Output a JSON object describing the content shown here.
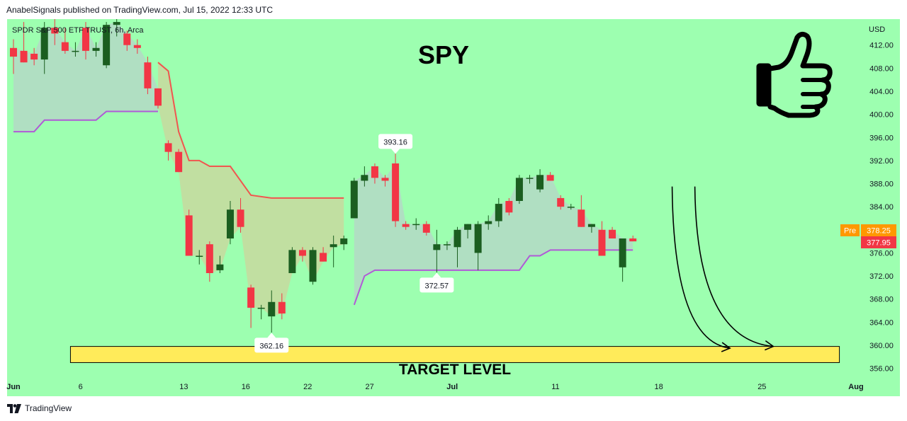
{
  "header": {
    "publisher_text": "AnabelSignals published on TradingView.com, Jul 15, 2022 12:33 UTC"
  },
  "footer": {
    "brand": "TradingView"
  },
  "colors": {
    "background": "#9dffb0",
    "bull": "#1b5e20",
    "bear": "#f23645",
    "upper_band": "#f0564f",
    "lower_band": "#b05bd6",
    "target_fill": "#ffeb5a",
    "pre_badge": "#ff9800",
    "price_badge": "#f23645"
  },
  "chart_data": {
    "type": "candlestick",
    "symbol_label": "SPDR S&P 500 ETF TRUST, 6h, Arca",
    "title": "SPY",
    "currency": "USD",
    "ylim": [
      353.5,
      416.5
    ],
    "y_ticks": [
      "412.00",
      "408.00",
      "404.00",
      "400.00",
      "396.00",
      "392.00",
      "388.00",
      "384.00",
      "380.00",
      "376.00",
      "372.00",
      "368.00",
      "364.00",
      "360.00",
      "356.00"
    ],
    "x_ticks": [
      {
        "label": "Jun",
        "i": 0
      },
      {
        "label": "6",
        "i": 6.5
      },
      {
        "label": "13",
        "i": 16.5
      },
      {
        "label": "16",
        "i": 22.5
      },
      {
        "label": "22",
        "i": 28.5
      },
      {
        "label": "27",
        "i": 34.5
      },
      {
        "label": "Jul",
        "i": 42.5
      },
      {
        "label": "11",
        "i": 52.5
      },
      {
        "label": "18",
        "i": 62.5
      },
      {
        "label": "25",
        "i": 72.5
      },
      {
        "label": "Aug",
        "i": 82.5
      }
    ],
    "candles": [
      {
        "i": 0,
        "o": 411.5,
        "h": 413.0,
        "l": 407.0,
        "c": 410.0
      },
      {
        "i": 1,
        "o": 411.0,
        "h": 416.0,
        "l": 409.0,
        "c": 409.0
      },
      {
        "i": 2,
        "o": 410.5,
        "h": 411.5,
        "l": 408.5,
        "c": 409.5
      },
      {
        "i": 3,
        "o": 409.5,
        "h": 416.0,
        "l": 407.0,
        "c": 415.0
      },
      {
        "i": 4,
        "o": 415.0,
        "h": 416.5,
        "l": 412.0,
        "c": 414.0
      },
      {
        "i": 5,
        "o": 412.5,
        "h": 415.0,
        "l": 410.5,
        "c": 411.0
      },
      {
        "i": 6,
        "o": 411.0,
        "h": 412.5,
        "l": 410.0,
        "c": 411.0
      },
      {
        "i": 7,
        "o": 415.0,
        "h": 416.0,
        "l": 409.5,
        "c": 411.0
      },
      {
        "i": 8,
        "o": 411.0,
        "h": 412.5,
        "l": 410.0,
        "c": 411.5
      },
      {
        "i": 9,
        "o": 408.5,
        "h": 416.0,
        "l": 408.0,
        "c": 415.5
      },
      {
        "i": 10,
        "o": 415.5,
        "h": 416.5,
        "l": 413.5,
        "c": 416.0
      },
      {
        "i": 11,
        "o": 414.0,
        "h": 414.5,
        "l": 411.0,
        "c": 412.0
      },
      {
        "i": 12,
        "o": 412.0,
        "h": 413.0,
        "l": 410.5,
        "c": 411.5
      },
      {
        "i": 13,
        "o": 409.0,
        "h": 410.0,
        "l": 403.5,
        "c": 404.5
      },
      {
        "i": 14,
        "o": 404.5,
        "h": 404.5,
        "l": 401.0,
        "c": 401.5
      },
      {
        "i": 15,
        "o": 395.0,
        "h": 395.5,
        "l": 392.0,
        "c": 393.5
      },
      {
        "i": 16,
        "o": 393.5,
        "h": 394.0,
        "l": 390.0,
        "c": 390.0
      },
      {
        "i": 17,
        "o": 382.5,
        "h": 383.5,
        "l": 375.5,
        "c": 375.5
      },
      {
        "i": 18,
        "o": 375.5,
        "h": 376.5,
        "l": 374.0,
        "c": 375.5
      },
      {
        "i": 19,
        "o": 377.5,
        "h": 378.0,
        "l": 371.0,
        "c": 372.5
      },
      {
        "i": 20,
        "o": 373.0,
        "h": 375.5,
        "l": 372.5,
        "c": 374.0
      },
      {
        "i": 21,
        "o": 378.5,
        "h": 385.0,
        "l": 377.5,
        "c": 383.5
      },
      {
        "i": 22,
        "o": 383.5,
        "h": 385.5,
        "l": 379.5,
        "c": 380.5
      },
      {
        "i": 23,
        "o": 370.0,
        "h": 370.5,
        "l": 363.0,
        "c": 366.5
      },
      {
        "i": 24,
        "o": 366.5,
        "h": 367.0,
        "l": 364.5,
        "c": 366.5
      },
      {
        "i": 25,
        "o": 365.0,
        "h": 369.5,
        "l": 362.2,
        "c": 367.5
      },
      {
        "i": 26,
        "o": 367.5,
        "h": 369.0,
        "l": 364.5,
        "c": 365.5
      },
      {
        "i": 27,
        "o": 372.5,
        "h": 377.0,
        "l": 372.5,
        "c": 376.5
      },
      {
        "i": 28,
        "o": 376.5,
        "h": 377.0,
        "l": 374.5,
        "c": 375.5
      },
      {
        "i": 29,
        "o": 371.0,
        "h": 377.0,
        "l": 370.5,
        "c": 376.5
      },
      {
        "i": 30,
        "o": 376.0,
        "h": 377.0,
        "l": 374.5,
        "c": 374.5
      },
      {
        "i": 31,
        "o": 377.0,
        "h": 379.0,
        "l": 373.5,
        "c": 377.5
      },
      {
        "i": 32,
        "o": 377.5,
        "h": 379.0,
        "l": 376.5,
        "c": 378.5
      },
      {
        "i": 33,
        "o": 382.0,
        "h": 389.0,
        "l": 382.0,
        "c": 388.5
      },
      {
        "i": 34,
        "o": 388.5,
        "h": 391.0,
        "l": 387.5,
        "c": 389.5
      },
      {
        "i": 35,
        "o": 391.0,
        "h": 391.5,
        "l": 388.0,
        "c": 389.0
      },
      {
        "i": 36,
        "o": 389.0,
        "h": 389.5,
        "l": 387.5,
        "c": 388.5
      },
      {
        "i": 37,
        "o": 391.5,
        "h": 393.2,
        "l": 380.5,
        "c": 381.5
      },
      {
        "i": 38,
        "o": 381.0,
        "h": 381.5,
        "l": 380.0,
        "c": 380.5
      },
      {
        "i": 39,
        "o": 381.0,
        "h": 382.0,
        "l": 380.0,
        "c": 381.0
      },
      {
        "i": 40,
        "o": 381.0,
        "h": 381.5,
        "l": 379.0,
        "c": 379.5
      },
      {
        "i": 41,
        "o": 376.5,
        "h": 380.0,
        "l": 372.6,
        "c": 377.5
      },
      {
        "i": 42,
        "o": 377.5,
        "h": 378.0,
        "l": 376.5,
        "c": 377.5
      },
      {
        "i": 43,
        "o": 377.0,
        "h": 380.5,
        "l": 373.5,
        "c": 380.0
      },
      {
        "i": 44,
        "o": 380.0,
        "h": 381.0,
        "l": 378.5,
        "c": 381.0
      },
      {
        "i": 45,
        "o": 376.0,
        "h": 381.5,
        "l": 373.0,
        "c": 381.0
      },
      {
        "i": 46,
        "o": 381.0,
        "h": 382.5,
        "l": 380.0,
        "c": 381.5
      },
      {
        "i": 47,
        "o": 381.5,
        "h": 385.5,
        "l": 380.5,
        "c": 384.5
      },
      {
        "i": 48,
        "o": 385.0,
        "h": 385.5,
        "l": 382.5,
        "c": 383.0
      },
      {
        "i": 49,
        "o": 385.0,
        "h": 389.5,
        "l": 384.5,
        "c": 389.0
      },
      {
        "i": 50,
        "o": 389.0,
        "h": 389.5,
        "l": 388.0,
        "c": 389.0
      },
      {
        "i": 51,
        "o": 387.0,
        "h": 390.5,
        "l": 386.5,
        "c": 389.5
      },
      {
        "i": 52,
        "o": 389.5,
        "h": 390.0,
        "l": 388.5,
        "c": 388.5
      },
      {
        "i": 53,
        "o": 385.5,
        "h": 386.0,
        "l": 383.5,
        "c": 384.0
      },
      {
        "i": 54,
        "o": 384.0,
        "h": 384.5,
        "l": 383.5,
        "c": 384.0
      },
      {
        "i": 55,
        "o": 383.5,
        "h": 386.0,
        "l": 380.5,
        "c": 380.5
      },
      {
        "i": 56,
        "o": 380.5,
        "h": 381.0,
        "l": 379.5,
        "c": 381.0
      },
      {
        "i": 57,
        "o": 380.0,
        "h": 381.5,
        "l": 375.5,
        "c": 375.5
      },
      {
        "i": 58,
        "o": 380.0,
        "h": 380.5,
        "l": 378.5,
        "c": 378.5
      },
      {
        "i": 59,
        "o": 373.5,
        "h": 378.0,
        "l": 371.0,
        "c": 378.5
      },
      {
        "i": 60,
        "o": 378.5,
        "h": 379.0,
        "l": 378.0,
        "c": 378.0
      }
    ],
    "upper_band": [
      {
        "i": 1,
        "v": 415.5
      },
      {
        "i": 3,
        "v": 416.0
      },
      {
        "i": 4,
        "v": 416.0
      },
      {
        "i": 11,
        "v": 413.5
      },
      {
        "i": 14,
        "v": 401.0
      },
      {
        "i": 14,
        "v": 409.0
      },
      {
        "i": 15,
        "v": 407.5
      },
      {
        "i": 16,
        "v": 397.0
      },
      {
        "i": 17,
        "v": 392.0
      },
      {
        "i": 18,
        "v": 392.0
      },
      {
        "i": 19,
        "v": 391.0
      },
      {
        "i": 21,
        "v": 391.0
      },
      {
        "i": 23,
        "v": 386.0
      },
      {
        "i": 25,
        "v": 385.5
      },
      {
        "i": 32,
        "v": 385.5
      }
    ],
    "lower_band": [
      {
        "i": 0,
        "v": 397.0
      },
      {
        "i": 2,
        "v": 397.0
      },
      {
        "i": 3,
        "v": 399.0
      },
      {
        "i": 8,
        "v": 399.0
      },
      {
        "i": 9,
        "v": 400.5
      },
      {
        "i": 14,
        "v": 400.5
      },
      {
        "i": 33,
        "v": 367.0
      },
      {
        "i": 34,
        "v": 372.0
      },
      {
        "i": 35,
        "v": 373.0
      },
      {
        "i": 49,
        "v": 373.0
      },
      {
        "i": 50,
        "v": 375.5
      },
      {
        "i": 51,
        "v": 375.5
      },
      {
        "i": 52,
        "v": 376.5
      },
      {
        "i": 60,
        "v": 376.5
      }
    ],
    "price_callouts": [
      {
        "label": "393.16",
        "i": 37,
        "v": 393.16,
        "position": "above"
      },
      {
        "label": "372.57",
        "i": 41,
        "v": 372.57,
        "position": "below"
      },
      {
        "label": "362.16",
        "i": 25,
        "v": 362.16,
        "position": "below"
      }
    ],
    "target_zone": {
      "label": "TARGET LEVEL",
      "from": 357.0,
      "to": 359.8,
      "i_start": 6,
      "i_end": 80
    },
    "last_prices": {
      "pre_label": "Pre",
      "pre_value": "378.25",
      "last_value": "377.95"
    },
    "projection_arrows": [
      {
        "i_start": 63.8,
        "v_start": 387.5,
        "i_end": 69.4,
        "v_end": 359.5
      },
      {
        "i_start": 66.0,
        "v_start": 387.5,
        "i_end": 73.6,
        "v_end": 359.8
      }
    ]
  }
}
